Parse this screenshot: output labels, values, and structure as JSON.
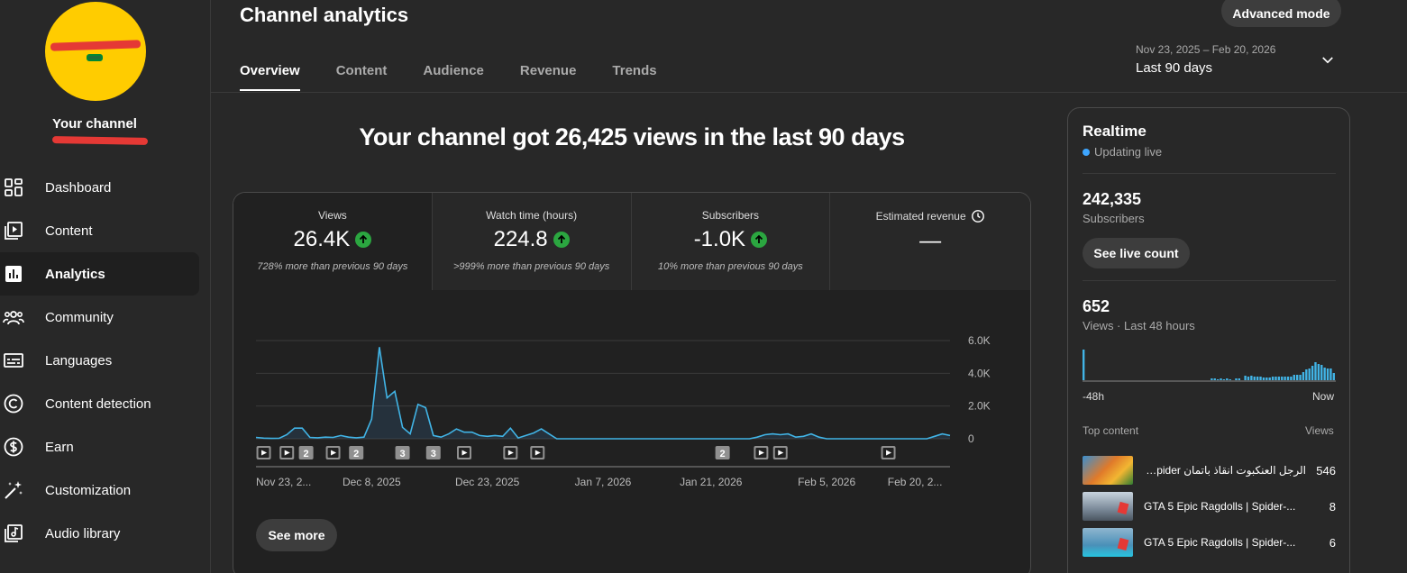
{
  "sidebar": {
    "channel_label": "Your channel",
    "items": [
      {
        "label": "Dashboard",
        "icon": "dashboard-icon",
        "active": false
      },
      {
        "label": "Content",
        "icon": "content-icon",
        "active": false
      },
      {
        "label": "Analytics",
        "icon": "analytics-icon",
        "active": true
      },
      {
        "label": "Community",
        "icon": "community-icon",
        "active": false
      },
      {
        "label": "Languages",
        "icon": "subtitles-icon",
        "active": false
      },
      {
        "label": "Content detection",
        "icon": "copyright-icon",
        "active": false
      },
      {
        "label": "Earn",
        "icon": "dollar-icon",
        "active": false
      },
      {
        "label": "Customization",
        "icon": "magic-wand-icon",
        "active": false
      },
      {
        "label": "Audio library",
        "icon": "audio-library-icon",
        "active": false
      }
    ]
  },
  "header": {
    "title": "Channel analytics",
    "advanced_mode": "Advanced mode",
    "tabs": [
      "Overview",
      "Content",
      "Audience",
      "Revenue",
      "Trends"
    ],
    "date_range": "Nov 23, 2025 – Feb 20, 2026",
    "date_preset": "Last 90 days"
  },
  "headline": "Your channel got 26,425 views in the last 90 days",
  "metrics": [
    {
      "label": "Views",
      "value": "26.4K",
      "trend": "up",
      "comparison": "728% more than previous 90 days"
    },
    {
      "label": "Watch time (hours)",
      "value": "224.8",
      "trend": "up",
      "comparison": ">999% more than previous 90 days"
    },
    {
      "label": "Subscribers",
      "value": "-1.0K",
      "trend": "up",
      "comparison": "10% more than previous 90 days"
    },
    {
      "label": "Estimated revenue",
      "value": "—",
      "trend": "none",
      "comparison": ""
    }
  ],
  "see_more": "See more",
  "chart_data": {
    "type": "line",
    "ylim": [
      0,
      6000
    ],
    "y_ticks": [
      "6.0K",
      "4.0K",
      "2.0K",
      "0"
    ],
    "y_tick_values": [
      6000,
      4000,
      2000,
      0
    ],
    "x_tick_labels": [
      "Nov 23, 2...",
      "Dec 8, 2025",
      "Dec 23, 2025",
      "Jan 7, 2026",
      "Jan 21, 2026",
      "Feb 5, 2026",
      "Feb 20, 2..."
    ],
    "x_tick_days": [
      0,
      15,
      30,
      45,
      59,
      74,
      89
    ],
    "series": [
      {
        "values": [
          80,
          40,
          20,
          30,
          250,
          650,
          650,
          80,
          60,
          100,
          80,
          200,
          100,
          60,
          100,
          1200,
          5600,
          2500,
          2900,
          700,
          300,
          2100,
          1900,
          200,
          100,
          300,
          600,
          400,
          400,
          200,
          150,
          200,
          150,
          650,
          50,
          200,
          350,
          600,
          300,
          0,
          0,
          0,
          0,
          0,
          0,
          0,
          0,
          0,
          0,
          0,
          0,
          0,
          0,
          0,
          0,
          0,
          0,
          0,
          0,
          0,
          0,
          0,
          0,
          0,
          0,
          100,
          250,
          300,
          250,
          300,
          100,
          150,
          300,
          100,
          0,
          0,
          0,
          0,
          0,
          0,
          0,
          0,
          0,
          0,
          0,
          0,
          0,
          0,
          150,
          300,
          200
        ]
      }
    ],
    "markers": [
      {
        "day": 1,
        "type": "play"
      },
      {
        "day": 4,
        "type": "play"
      },
      {
        "day": 6.5,
        "type": "count",
        "label": "2"
      },
      {
        "day": 10,
        "type": "play"
      },
      {
        "day": 13,
        "type": "count",
        "label": "2"
      },
      {
        "day": 19,
        "type": "count",
        "label": "3"
      },
      {
        "day": 23,
        "type": "count",
        "label": "3"
      },
      {
        "day": 27,
        "type": "play"
      },
      {
        "day": 33,
        "type": "play"
      },
      {
        "day": 36.5,
        "type": "play"
      },
      {
        "day": 60.5,
        "type": "count",
        "label": "2"
      },
      {
        "day": 65.5,
        "type": "play"
      },
      {
        "day": 68,
        "type": "play"
      },
      {
        "day": 82,
        "type": "play"
      }
    ]
  },
  "realtime": {
    "title": "Realtime",
    "status": "Updating live",
    "subscribers_value": "242,335",
    "subscribers_label": "Subscribers",
    "live_count_button": "See live count",
    "views_value": "652",
    "views_label": "Views · Last 48 hours",
    "axis_start": "-48h",
    "axis_end": "Now",
    "bars": [
      34,
      0,
      0,
      0,
      0,
      0,
      0,
      0,
      0,
      0,
      0,
      0,
      0,
      0,
      0,
      0,
      0,
      0,
      0,
      0,
      0,
      0,
      0,
      0,
      0,
      0,
      0,
      0,
      0,
      0,
      0,
      0,
      0,
      0,
      0,
      0,
      0,
      0,
      0,
      0,
      0,
      0,
      2,
      2,
      1,
      2,
      1,
      2,
      1,
      0,
      2,
      2,
      0,
      5,
      4,
      5,
      4,
      4,
      4,
      3,
      3,
      3,
      4,
      4,
      4,
      4,
      4,
      4,
      4,
      6,
      6,
      6,
      9,
      12,
      13,
      16,
      20,
      18,
      17,
      14,
      13,
      13,
      8
    ],
    "top_content_label": "Top content",
    "views_col_label": "Views",
    "top_content": [
      {
        "title": "الرجل العنكبوت انقاذ باتمان Spider ...",
        "views": "546"
      },
      {
        "title": "GTA 5 Epic Ragdolls | Spider-...",
        "views": "8"
      },
      {
        "title": "GTA 5 Epic Ragdolls | Spider-...",
        "views": "6"
      }
    ]
  }
}
